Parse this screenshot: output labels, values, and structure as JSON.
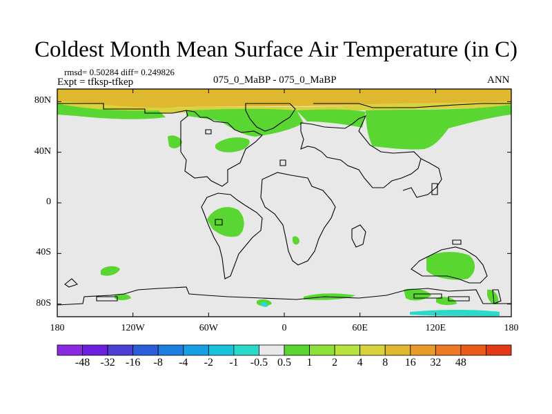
{
  "title": "Coldest Month Mean Surface Air Temperature (in C)",
  "stats": {
    "rmsd_text": "rmsd= 0.50284 diff= 0.249826",
    "expt_text": "Expt = tfksp-tfkep"
  },
  "case_label": "075_0_MaBP - 075_0_MaBP",
  "season": "ANN",
  "lat_ticks": [
    {
      "label": "80N",
      "value": 80
    },
    {
      "label": "40N",
      "value": 40
    },
    {
      "label": "0",
      "value": 0
    },
    {
      "label": "40S",
      "value": -40
    },
    {
      "label": "80S",
      "value": -80
    }
  ],
  "lon_ticks": [
    {
      "label": "180",
      "value": -180
    },
    {
      "label": "120W",
      "value": -120
    },
    {
      "label": "60W",
      "value": -60
    },
    {
      "label": "0",
      "value": 0
    },
    {
      "label": "60E",
      "value": 60
    },
    {
      "label": "120E",
      "value": 120
    },
    {
      "label": "180",
      "value": 180
    }
  ],
  "colorbar": {
    "colors": [
      "#8a2be2",
      "#6a1fdc",
      "#4b3fd6",
      "#2a5fd9",
      "#1c7fe0",
      "#17a0e6",
      "#19c2dc",
      "#2bd9c8",
      "#e8e8e8",
      "#5ad632",
      "#8ee03a",
      "#b8e23e",
      "#d8d23c",
      "#e0b830",
      "#e89a2a",
      "#ec7a22",
      "#ec5a1c",
      "#e23a14"
    ],
    "labels": [
      "-48",
      "-32",
      "-16",
      "-8",
      "-4",
      "-2",
      "-1",
      "-0.5",
      "0.5",
      "1",
      "2",
      "4",
      "8",
      "16",
      "32",
      "48"
    ]
  },
  "map_colors": {
    "neutral": "#e8e8e8",
    "arctic": "#e0b830",
    "arctic_edge": "#d8d23c",
    "anomaly": "#5ad632",
    "cool": "#2bd9c8",
    "coast": "#000000"
  }
}
